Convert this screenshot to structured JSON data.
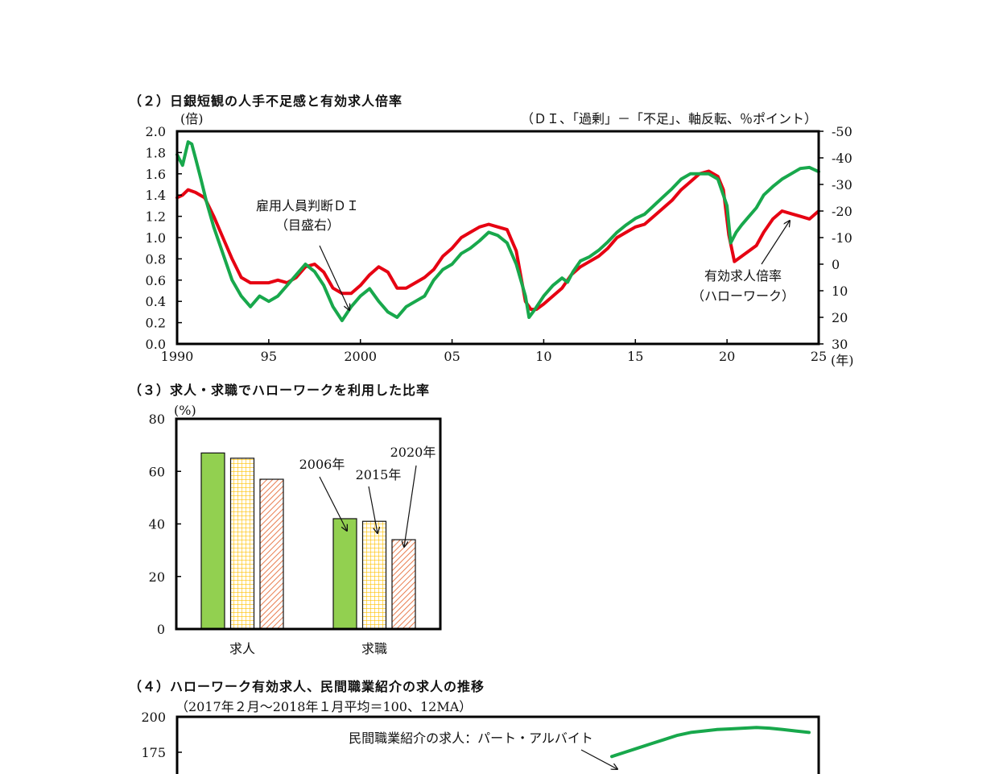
{
  "chart2": {
    "title": "（２）日銀短観の人手不足感と有効求人倍率",
    "left_unit": "(倍)",
    "right_unit": "（ＤＩ、「過剰」－「不足」、軸反転、％ポイント）",
    "x_unit": "(年)",
    "annot_di_line1": "雇用人員判断ＤＩ",
    "annot_di_line2": "（目盛右）",
    "annot_ratio_line1": "有効求人倍率",
    "annot_ratio_line2": "（ハローワーク）",
    "colors": {
      "di": "#e60012",
      "ratio": "#18a84c"
    }
  },
  "chart3": {
    "title": "（３）求人・求職でハローワークを利用した比率",
    "unit": "(%)",
    "label_2006": "2006年",
    "label_2015": "2015年",
    "label_2020": "2020年",
    "colors": {
      "2006": "#92d050",
      "2015": "#ffc000",
      "2020": "#e97d4f"
    }
  },
  "chart4": {
    "title": "（４）ハローワーク有効求人、民間職業紹介の求人の推移",
    "subtitle": "（2017年２月～2018年１月平均＝100、12MA）",
    "annot_part": "民間職業紹介の求人：パート・アルバイト",
    "colors": {
      "part": "#18a84c"
    }
  },
  "chart_data": [
    {
      "type": "line",
      "x_tick_labels": [
        "1990",
        "95",
        "2000",
        "05",
        "10",
        "15",
        "20",
        "25"
      ],
      "xlim": [
        1990,
        2025
      ],
      "y_left_ticks": [
        "2.0",
        "1.8",
        "1.6",
        "1.4",
        "1.2",
        "1.0",
        "0.8",
        "0.6",
        "0.4",
        "0.2",
        "0.0"
      ],
      "ylim_left": [
        0,
        2
      ],
      "y_right_ticks": [
        "-50",
        "-40",
        "-30",
        "-20",
        "-10",
        "0",
        "10",
        "20",
        "30"
      ],
      "ylim_right": [
        30,
        -50
      ],
      "series": [
        {
          "name": "雇用人員判断ＤＩ",
          "axis": "right",
          "x": [
            1990,
            1990.3,
            1990.6,
            1991,
            1991.5,
            1992,
            1992.5,
            1993,
            1993.5,
            1994,
            1994.5,
            1995,
            1995.5,
            1996,
            1996.5,
            1997,
            1997.5,
            1998,
            1998.5,
            1999,
            1999.5,
            2000,
            2000.5,
            2001,
            2001.5,
            2002,
            2002.5,
            2003,
            2003.5,
            2004,
            2004.5,
            2005,
            2005.5,
            2006,
            2006.5,
            2007,
            2007.5,
            2008,
            2008.5,
            2009,
            2009.3,
            2009.6,
            2010,
            2010.5,
            2011,
            2011.5,
            2012,
            2012.5,
            2013,
            2013.5,
            2014,
            2014.5,
            2015,
            2015.5,
            2016,
            2016.5,
            2017,
            2017.5,
            2018,
            2018.5,
            2019,
            2019.5,
            2019.8,
            2020.1,
            2020.4,
            2020.8,
            2021.2,
            2021.6,
            2022,
            2022.5,
            2023,
            2023.5,
            2024,
            2024.5,
            2025
          ],
          "values": [
            -25,
            -26,
            -28,
            -27,
            -25,
            -18,
            -10,
            -2,
            5,
            7,
            7,
            7,
            6,
            7,
            5,
            1,
            0,
            3,
            9,
            11,
            11,
            8,
            4,
            1,
            3,
            9,
            9,
            7,
            5,
            2,
            -3,
            -6,
            -10,
            -12,
            -14,
            -15,
            -14,
            -13,
            -5,
            14,
            17,
            17,
            15,
            12,
            9,
            4,
            1,
            -1,
            -3,
            -6,
            -10,
            -12,
            -14,
            -15,
            -18,
            -21,
            -24,
            -28,
            -31,
            -34,
            -35,
            -33,
            -28,
            -11,
            -1,
            -3,
            -5,
            -7,
            -12,
            -17,
            -20,
            -19,
            -18,
            -17,
            -20
          ]
        },
        {
          "name": "有効求人倍率",
          "axis": "left",
          "x": [
            1990,
            1990.3,
            1990.6,
            1990.8,
            1991,
            1991.3,
            1991.6,
            1992,
            1992.5,
            1993,
            1993.5,
            1994,
            1994.5,
            1995,
            1995.5,
            1996,
            1996.5,
            1997,
            1997.5,
            1998,
            1998.5,
            1999,
            1999.5,
            2000,
            2000.5,
            2001,
            2001.5,
            2002,
            2002.5,
            2003,
            2003.5,
            2004,
            2004.5,
            2005,
            2005.5,
            2006,
            2006.5,
            2007,
            2007.5,
            2008,
            2008.5,
            2009,
            2009.2,
            2009.5,
            2010,
            2010.5,
            2011,
            2011.3,
            2011.6,
            2012,
            2012.5,
            2013,
            2013.5,
            2014,
            2014.5,
            2015,
            2015.5,
            2016,
            2016.5,
            2017,
            2017.5,
            2018,
            2018.5,
            2019,
            2019.5,
            2020,
            2020.2,
            2020.5,
            2020.8,
            2021.2,
            2021.6,
            2022,
            2022.5,
            2023,
            2023.5,
            2024,
            2024.5,
            2025
          ],
          "values": [
            1.78,
            1.68,
            1.9,
            1.88,
            1.75,
            1.55,
            1.34,
            1.1,
            0.85,
            0.6,
            0.45,
            0.35,
            0.45,
            0.4,
            0.45,
            0.55,
            0.65,
            0.75,
            0.68,
            0.55,
            0.35,
            0.22,
            0.35,
            0.45,
            0.52,
            0.4,
            0.3,
            0.25,
            0.35,
            0.4,
            0.45,
            0.6,
            0.7,
            0.75,
            0.85,
            0.9,
            0.97,
            1.05,
            1.02,
            0.95,
            0.75,
            0.45,
            0.25,
            0.32,
            0.45,
            0.55,
            0.62,
            0.58,
            0.68,
            0.78,
            0.82,
            0.88,
            0.96,
            1.05,
            1.12,
            1.18,
            1.22,
            1.3,
            1.38,
            1.46,
            1.55,
            1.6,
            1.6,
            1.6,
            1.55,
            1.3,
            0.95,
            1.05,
            1.12,
            1.2,
            1.28,
            1.4,
            1.48,
            1.55,
            1.6,
            1.65,
            1.66,
            1.62
          ]
        }
      ]
    },
    {
      "type": "bar",
      "categories": [
        "求人",
        "求職"
      ],
      "ylim": [
        0,
        80
      ],
      "y_ticks": [
        "80",
        "60",
        "40",
        "20",
        "0"
      ],
      "series": [
        {
          "name": "2006年",
          "values": [
            67,
            42
          ]
        },
        {
          "name": "2015年",
          "values": [
            65,
            41
          ]
        },
        {
          "name": "2020年",
          "values": [
            57,
            34
          ]
        }
      ]
    },
    {
      "type": "line",
      "y_ticks": [
        "200",
        "175"
      ],
      "series": [
        {
          "name": "民間職業紹介の求人：パート・アルバイト",
          "values": [
            172,
            175,
            178,
            181,
            184,
            187,
            189,
            190,
            191,
            191.5,
            192,
            192.5,
            192,
            191,
            190,
            189
          ]
        }
      ]
    }
  ]
}
